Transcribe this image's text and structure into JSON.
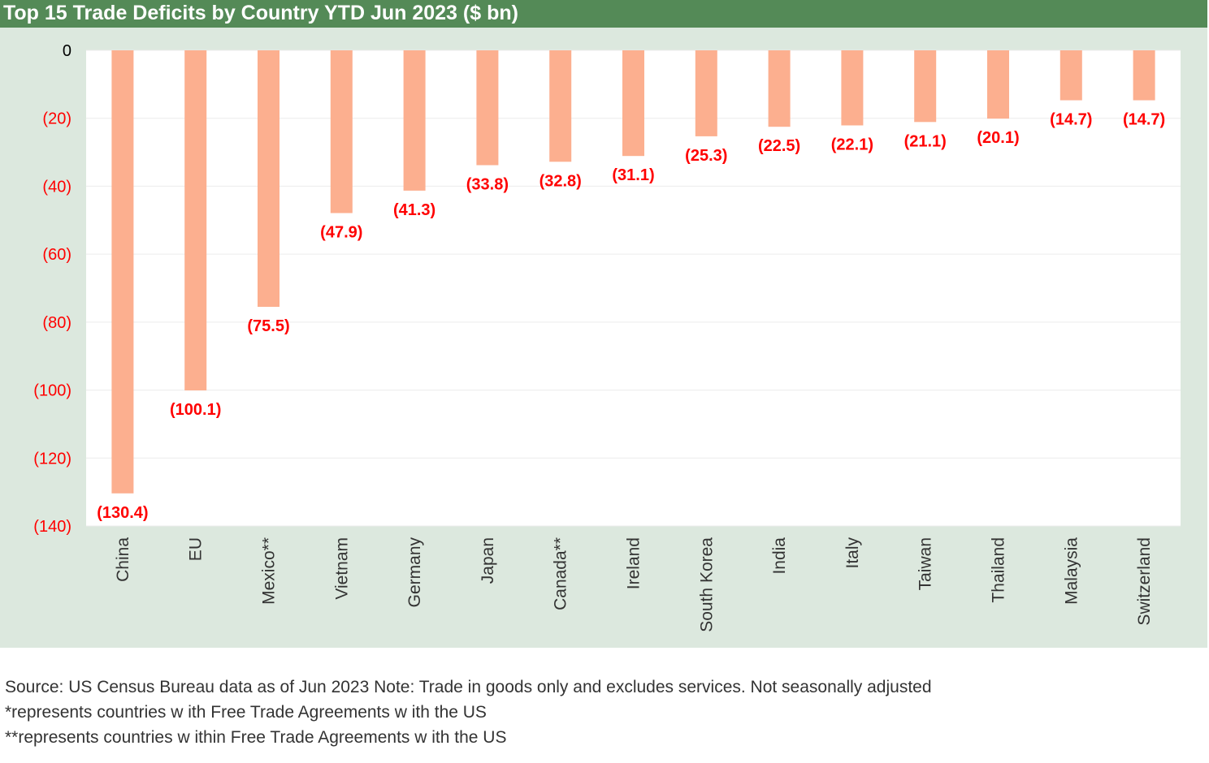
{
  "colors": {
    "header_bg": "#548a57",
    "panel_bg": "#dce8de",
    "plot_bg": "#ffffff",
    "bar_fill": "#fcaf8f",
    "label_red": "#ff0000",
    "gridline": "#ececec"
  },
  "chart_data": {
    "type": "bar",
    "title": "Top 15 Trade Deficits by Country YTD Jun 2023 ($ bn)",
    "xlabel": "",
    "ylabel": "",
    "categories": [
      "China",
      "EU",
      "Mexico**",
      "Vietnam",
      "Germany",
      "Japan",
      "Canada**",
      "Ireland",
      "South Korea",
      "India",
      "Italy",
      "Taiwan",
      "Thailand",
      "Malaysia",
      "Switzerland"
    ],
    "values": [
      -130.4,
      -100.1,
      -75.5,
      -47.9,
      -41.3,
      -33.8,
      -32.8,
      -31.1,
      -25.3,
      -22.5,
      -22.1,
      -21.1,
      -20.1,
      -14.7,
      -14.7
    ],
    "data_labels": [
      "(130.4)",
      "(100.1)",
      "(75.5)",
      "(47.9)",
      "(41.3)",
      "(33.8)",
      "(32.8)",
      "(31.1)",
      "(25.3)",
      "(22.5)",
      "(22.1)",
      "(21.1)",
      "(20.1)",
      "(14.7)",
      "(14.7)"
    ],
    "ylim": [
      -140,
      0
    ],
    "y_ticks": [
      0,
      -20,
      -40,
      -60,
      -80,
      -100,
      -120,
      -140
    ],
    "y_tick_labels": [
      "0",
      "(20)",
      "(40)",
      "(60)",
      "(80)",
      "(100)",
      "(120)",
      "(140)"
    ],
    "grid": true,
    "legend": "none"
  },
  "footnotes": {
    "source": "Source: US Census Bureau data as of Jun 2023 Note: Trade in goods only and excludes services. Not seasonally adjusted",
    "note1": "*represents countries w ith Free Trade Agreements w ith the US",
    "note2": "**represents countries w ithin Free Trade Agreements w ith the US"
  }
}
